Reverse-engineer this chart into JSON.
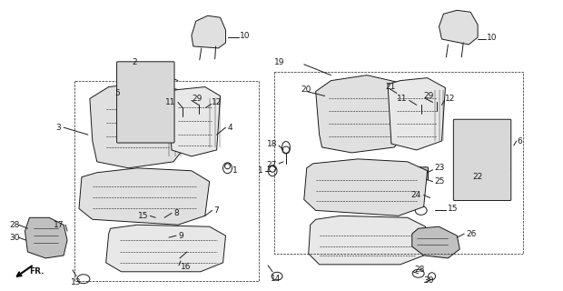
{
  "bg_color": "#ffffff",
  "line_color": "#1a1a1a",
  "gray_fill": "#e0e0e0",
  "dark_gray": "#c0c0c0",
  "fig_w": 6.2,
  "fig_h": 3.2,
  "dpi": 100
}
